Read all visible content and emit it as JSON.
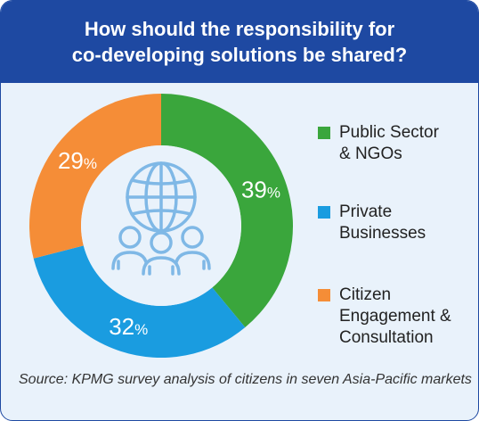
{
  "header": {
    "title": "How should the responsibility for\nco-developing solutions be shared?"
  },
  "chart_data": {
    "type": "pie",
    "variant": "donut",
    "categories": [
      "Public Sector & NGOs",
      "Private Businesses",
      "Citizen Engagement & Consultation"
    ],
    "values": [
      39,
      32,
      29
    ],
    "unit": "%",
    "colors": [
      "#3aa63c",
      "#1a9ce0",
      "#f58d37"
    ],
    "legend_position": "right",
    "center_icon": "global-community-icon"
  },
  "legend": [
    {
      "label": "Public Sector\n& NGOs",
      "color": "#3aa63c"
    },
    {
      "label": "Private\nBusinesses",
      "color": "#1a9ce0"
    },
    {
      "label": "Citizen\nEngagement &\nConsultation",
      "color": "#f58d37"
    }
  ],
  "source": "Source: KPMG survey analysis of citizens in seven Asia-Pacific markets",
  "colors": {
    "header_bg": "#1e49a2",
    "card_bg": "#e9f2fb",
    "icon_stroke": "#7fb8e6"
  }
}
